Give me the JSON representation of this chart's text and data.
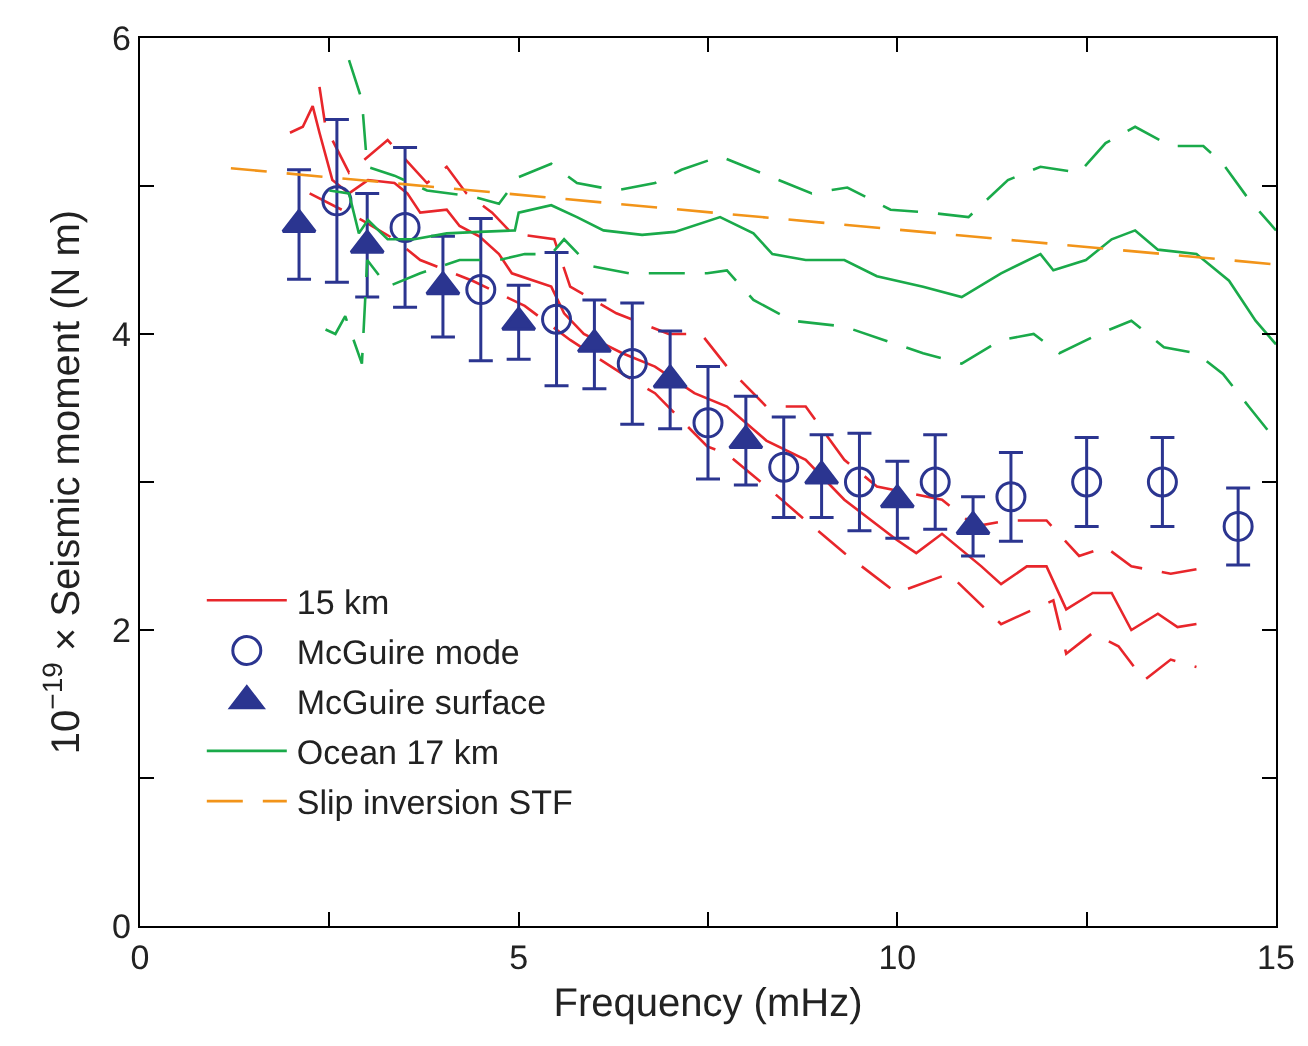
{
  "chart_data": {
    "type": "line",
    "xlabel": "Frequency (mHz)",
    "ylabel": "10$^{−19}$ × Seismic moment (N m)",
    "xlim": [
      0,
      15
    ],
    "ylim": [
      0,
      6
    ],
    "xticks": [
      0,
      {
        "value": 2.5,
        "label": null
      },
      5,
      {
        "value": 7.5,
        "label": null
      },
      10,
      {
        "value": 12.5,
        "label": null
      },
      15
    ],
    "yticks": [
      0,
      {
        "value": 1,
        "label": null
      },
      2,
      {
        "value": 3,
        "label": null
      },
      4,
      {
        "value": 5,
        "label": null
      },
      6
    ],
    "grid": false,
    "legend": "bottom left",
    "series": [
      {
        "name": "15 km",
        "color": "#e8262b",
        "line_style": "solid",
        "marker": "none",
        "x": [
          1.98,
          2.15,
          2.28,
          2.37,
          2.54,
          2.76,
          3.01,
          3.36,
          3.53,
          3.7,
          4.05,
          4.22,
          4.48,
          4.74,
          4.91,
          5.43,
          5.6,
          5.86,
          6.37,
          6.8,
          7.32,
          7.75,
          8.27,
          8.79,
          9.3,
          9.99,
          10.25,
          10.59,
          11.11,
          11.37,
          11.71,
          11.97,
          12.23,
          12.58,
          12.83,
          13.09,
          13.44,
          13.7,
          13.95
        ],
        "values": [
          5.36,
          5.4,
          5.54,
          5.36,
          5.04,
          4.95,
          5.04,
          5.02,
          4.95,
          4.82,
          4.84,
          4.73,
          4.66,
          4.54,
          4.41,
          4.32,
          4.14,
          4.0,
          3.87,
          3.78,
          3.6,
          3.51,
          3.28,
          3.15,
          2.88,
          2.61,
          2.52,
          2.65,
          2.43,
          2.31,
          2.43,
          2.43,
          2.14,
          2.25,
          2.25,
          2.0,
          2.11,
          2.02,
          2.04
        ]
      },
      {
        "color": "#e8262b",
        "line_style": "dashed",
        "marker": "none",
        "x": [
          2.37,
          2.45,
          2.76,
          3.27,
          3.79,
          4.05,
          4.31,
          4.65,
          4.91,
          5.47,
          5.68,
          6.29,
          6.98,
          7.41,
          7.75,
          8.27,
          8.79,
          9.3,
          9.73,
          10.59,
          11.03,
          11.46,
          11.97,
          12.4,
          12.75,
          13.09,
          13.61,
          13.95
        ],
        "values": [
          5.67,
          5.4,
          5.09,
          5.31,
          5.02,
          5.13,
          4.95,
          4.82,
          4.68,
          4.64,
          4.32,
          4.14,
          4.0,
          4.0,
          3.78,
          3.51,
          3.51,
          3.15,
          2.97,
          2.88,
          2.7,
          2.74,
          2.74,
          2.5,
          2.56,
          2.43,
          2.38,
          2.41
        ]
      },
      {
        "color": "#e8262b",
        "line_style": "dashed",
        "marker": "none",
        "x": [
          2.24,
          2.93,
          3.36,
          3.7,
          4.39,
          5.08,
          5.68,
          6.37,
          6.8,
          7.49,
          7.75,
          8.27,
          8.79,
          9.3,
          9.99,
          10.68,
          11.37,
          12.06,
          12.23,
          12.58,
          12.92,
          13.26,
          13.61,
          13.95
        ],
        "values": [
          4.95,
          4.77,
          4.64,
          4.5,
          4.36,
          4.19,
          3.96,
          3.73,
          3.6,
          3.24,
          3.19,
          2.97,
          2.74,
          2.52,
          2.25,
          2.38,
          2.04,
          2.2,
          1.84,
          1.98,
          1.89,
          1.66,
          1.8,
          1.75
        ]
      },
      {
        "name": "McGuire mode",
        "type": "scatter",
        "color": "#2b3590",
        "marker": "circle",
        "x": [
          2.6,
          3.5,
          4.5,
          5.5,
          6.5,
          7.5,
          8.5,
          9.5,
          10.5,
          11.5,
          12.5,
          13.5,
          14.5
        ],
        "values": [
          4.9,
          4.72,
          4.3,
          4.1,
          3.8,
          3.4,
          3.1,
          3.0,
          3.0,
          2.9,
          3.0,
          3.0,
          2.7
        ],
        "errors": [
          0.55,
          0.54,
          0.48,
          0.45,
          0.41,
          0.38,
          0.34,
          0.33,
          0.32,
          0.3,
          0.3,
          0.3,
          0.26
        ]
      },
      {
        "name": "McGuire surface",
        "type": "scatter",
        "color": "#2b3590",
        "marker": "triangle",
        "x": [
          2.1,
          3.0,
          4.0,
          5.0,
          6.0,
          7.0,
          8.0,
          9.0,
          10.0,
          11.0
        ],
        "values": [
          4.74,
          4.6,
          4.32,
          4.08,
          3.93,
          3.69,
          3.28,
          3.04,
          2.88,
          2.7
        ],
        "errors": [
          0.37,
          0.35,
          0.34,
          0.25,
          0.3,
          0.33,
          0.3,
          0.28,
          0.26,
          0.2
        ]
      },
      {
        "name": "Ocean 17 km",
        "color": "#1aaa4a",
        "line_style": "solid",
        "marker": "none",
        "x": [
          2.5,
          2.76,
          2.89,
          3.01,
          3.27,
          3.62,
          4.05,
          4.48,
          4.95,
          5.0,
          5.43,
          5.77,
          6.12,
          6.63,
          7.06,
          7.66,
          8.1,
          8.35,
          8.79,
          9.3,
          9.73,
          10.34,
          10.85,
          11.37,
          11.89,
          12.06,
          12.49,
          12.83,
          13.14,
          13.44,
          13.95,
          14.38,
          14.73,
          15.0
        ],
        "values": [
          4.97,
          4.95,
          4.68,
          4.77,
          4.64,
          4.64,
          4.68,
          4.69,
          4.7,
          4.82,
          4.87,
          4.79,
          4.7,
          4.67,
          4.69,
          4.79,
          4.68,
          4.54,
          4.5,
          4.5,
          4.39,
          4.32,
          4.25,
          4.41,
          4.54,
          4.43,
          4.5,
          4.64,
          4.7,
          4.57,
          4.54,
          4.36,
          4.09,
          3.93
        ]
      },
      {
        "color": "#1aaa4a",
        "line_style": "dashed",
        "marker": "none",
        "x": [
          2.76,
          2.93,
          3.0,
          3.36,
          3.79,
          4.39,
          4.74,
          5.0,
          5.43,
          5.77,
          6.29,
          6.8,
          7.15,
          7.66,
          8.53,
          8.87,
          9.34,
          9.91,
          10.42,
          10.94,
          11.46,
          11.89,
          12.4,
          12.75,
          13.14,
          13.61,
          14.04,
          14.3,
          14.64,
          15.0
        ],
        "values": [
          5.85,
          5.58,
          5.13,
          5.07,
          4.97,
          4.93,
          4.88,
          5.06,
          5.15,
          5.02,
          4.97,
          5.02,
          5.11,
          5.2,
          5.02,
          4.95,
          4.99,
          4.84,
          4.82,
          4.79,
          5.04,
          5.13,
          5.09,
          5.29,
          5.4,
          5.27,
          5.27,
          5.15,
          4.91,
          4.7
        ]
      },
      {
        "color": "#1aaa4a",
        "line_style": "dashed",
        "marker": "none",
        "x": [
          2.45,
          2.58,
          2.71,
          2.93,
          3.0,
          3.27,
          3.7,
          4.22,
          4.74,
          5.08,
          5.43,
          5.6,
          5.94,
          6.46,
          6.98,
          7.49,
          7.75,
          8.1,
          8.61,
          9.3,
          9.82,
          10.34,
          10.85,
          11.37,
          11.8,
          12.14,
          12.66,
          13.09,
          13.52,
          13.95,
          14.3,
          14.64,
          15.0
        ],
        "values": [
          4.03,
          4.0,
          4.12,
          3.8,
          4.5,
          4.32,
          4.41,
          4.5,
          4.5,
          4.54,
          4.54,
          4.64,
          4.46,
          4.41,
          4.41,
          4.41,
          4.43,
          4.23,
          4.09,
          4.05,
          3.96,
          3.87,
          3.8,
          3.96,
          4.0,
          3.87,
          4.0,
          4.09,
          3.91,
          3.87,
          3.73,
          3.51,
          3.28
        ]
      },
      {
        "name": "Slip inversion STF",
        "color": "#f29419",
        "line_style": "dashed",
        "marker": "none",
        "x": [
          1.2,
          15
        ],
        "values": [
          5.12,
          4.47
        ]
      }
    ]
  }
}
